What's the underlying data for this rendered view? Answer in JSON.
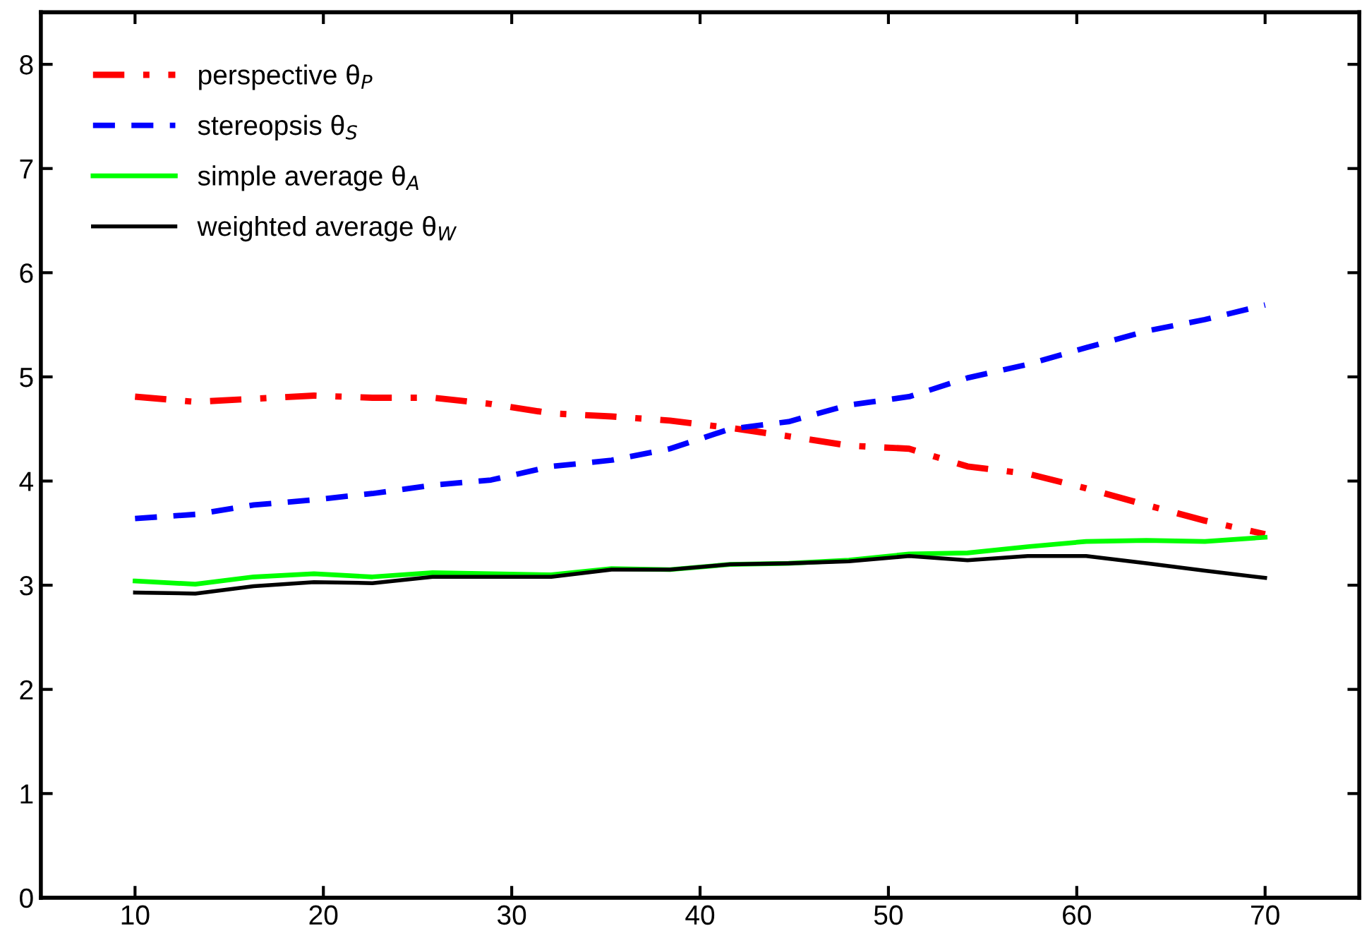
{
  "chart_data": {
    "type": "line",
    "x": [
      10,
      13.2,
      16.3,
      19.5,
      22.6,
      25.8,
      28.9,
      32.1,
      35.3,
      38.4,
      41.6,
      44.7,
      47.9,
      51.1,
      54.2,
      57.4,
      60.5,
      63.7,
      66.8,
      70
    ],
    "series": [
      {
        "name": "perspective θ$_{P}$",
        "color": "#ff0000",
        "line_style": "dashdot",
        "values": [
          4.81,
          4.76,
          4.79,
          4.82,
          4.8,
          4.8,
          4.74,
          4.65,
          4.62,
          4.58,
          4.51,
          4.43,
          4.34,
          4.31,
          4.14,
          4.07,
          3.93,
          3.77,
          3.62,
          3.49
        ]
      },
      {
        "name": "stereopsis θ$_{S}$",
        "color": "#0000ff",
        "line_style": "dashed",
        "values": [
          3.64,
          3.68,
          3.77,
          3.82,
          3.88,
          3.96,
          4.01,
          4.14,
          4.2,
          4.31,
          4.5,
          4.57,
          4.73,
          4.81,
          4.99,
          5.12,
          5.28,
          5.44,
          5.55,
          5.69
        ]
      },
      {
        "name": "simple average θ$_{A}$",
        "color": "#00ff00",
        "line_style": "solid",
        "values": [
          3.04,
          3.01,
          3.08,
          3.11,
          3.08,
          3.12,
          3.11,
          3.1,
          3.16,
          3.15,
          3.2,
          3.21,
          3.24,
          3.3,
          3.31,
          3.37,
          3.42,
          3.43,
          3.42,
          3.46
        ]
      },
      {
        "name": "weighted average θ$_{W}$",
        "color": "#000000",
        "line_style": "solid",
        "values": [
          2.93,
          2.92,
          2.99,
          3.03,
          3.02,
          3.08,
          3.08,
          3.08,
          3.15,
          3.15,
          3.2,
          3.21,
          3.23,
          3.28,
          3.24,
          3.28,
          3.28,
          3.21,
          3.14,
          3.07
        ]
      }
    ],
    "xlim": [
      5,
      75
    ],
    "ylim": [
      0,
      8.5
    ],
    "xticks": [
      10,
      20,
      30,
      40,
      50,
      60,
      70
    ],
    "yticks": [
      0,
      1,
      2,
      3,
      4,
      5,
      6,
      7,
      8
    ],
    "grid": false,
    "legend": "top left",
    "marker": "none"
  }
}
